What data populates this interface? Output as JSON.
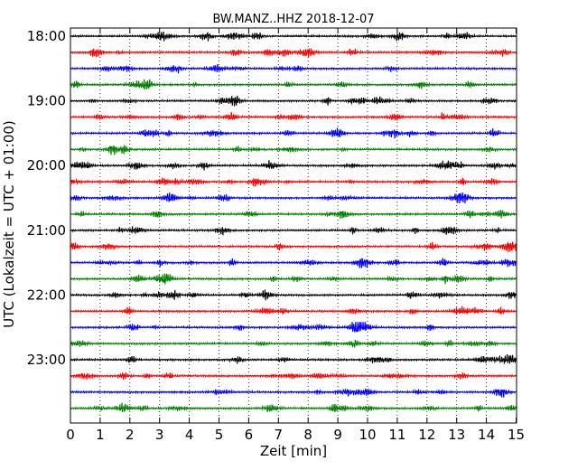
{
  "chart_data": {
    "type": "line",
    "title": "BW.MANZ..HHZ 2018-12-07",
    "xlabel": "Zeit  [min]",
    "ylabel": "UTC (Lokalzeit = UTC + 01:00)",
    "xlim": [
      0,
      15
    ],
    "x_ticks": [
      "0",
      "1",
      "2",
      "3",
      "4",
      "5",
      "6",
      "7",
      "8",
      "9",
      "10",
      "11",
      "12",
      "13",
      "14",
      "15"
    ],
    "y_tick_labels": [
      "18:00",
      "19:00",
      "20:00",
      "21:00",
      "22:00",
      "23:00"
    ],
    "trace_minutes": 15,
    "trace_colors": [
      "#000000",
      "#ff0000",
      "#0000ff",
      "#007f00"
    ],
    "grid": "vertical dotted at each minute",
    "rows": [
      {
        "start": "18:00",
        "color": "#000000"
      },
      {
        "start": "18:15",
        "color": "#ff0000"
      },
      {
        "start": "18:30",
        "color": "#0000ff"
      },
      {
        "start": "18:45",
        "color": "#007f00"
      },
      {
        "start": "19:00",
        "color": "#000000"
      },
      {
        "start": "19:15",
        "color": "#ff0000"
      },
      {
        "start": "19:30",
        "color": "#0000ff"
      },
      {
        "start": "19:45",
        "color": "#007f00"
      },
      {
        "start": "20:00",
        "color": "#000000"
      },
      {
        "start": "20:15",
        "color": "#ff0000"
      },
      {
        "start": "20:30",
        "color": "#0000ff"
      },
      {
        "start": "20:45",
        "color": "#007f00"
      },
      {
        "start": "21:00",
        "color": "#000000"
      },
      {
        "start": "21:15",
        "color": "#ff0000"
      },
      {
        "start": "21:30",
        "color": "#0000ff"
      },
      {
        "start": "21:45",
        "color": "#007f00"
      },
      {
        "start": "22:00",
        "color": "#000000"
      },
      {
        "start": "22:15",
        "color": "#ff0000"
      },
      {
        "start": "22:30",
        "color": "#0000ff"
      },
      {
        "start": "22:45",
        "color": "#007f00"
      },
      {
        "start": "23:00",
        "color": "#000000"
      },
      {
        "start": "23:15",
        "color": "#ff0000"
      },
      {
        "start": "23:30",
        "color": "#0000ff"
      },
      {
        "start": "23:45",
        "color": "#007f00"
      }
    ]
  }
}
